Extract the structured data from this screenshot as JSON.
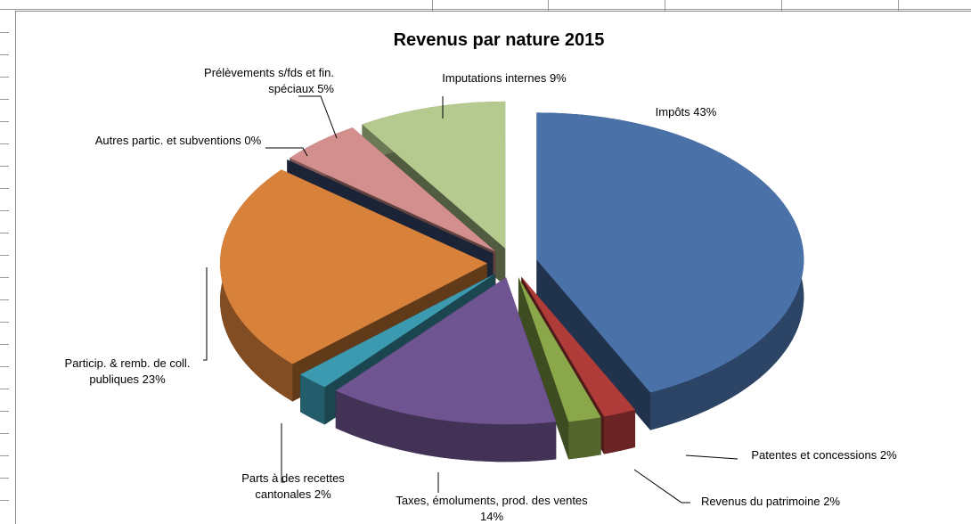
{
  "chart_data": {
    "type": "pie",
    "title": "Revenus par nature 2015",
    "categories": [
      "Impôts",
      "Patentes et concessions",
      "Revenus du patrimoine",
      "Taxes, émoluments, prod. des ventes",
      "Parts à des recettes cantonales",
      "Particip. & remb. de coll. publiques",
      "Autres partic. et subventions",
      "Prélèvements s/fds et fin. spéciaux",
      "Imputations internes"
    ],
    "values": [
      43,
      2,
      2,
      14,
      2,
      23,
      0,
      5,
      9
    ],
    "value_labels": [
      "43%",
      "2%",
      "2%",
      "14%",
      "2%",
      "23%",
      "0%",
      "5%",
      "9%"
    ],
    "colors": [
      "#4a72a8",
      "#b03c3a",
      "#8aa84a",
      "#6e5490",
      "#3b9ab0",
      "#d8813a",
      "#3a4f78",
      "#d38e8e",
      "#b5ca8e"
    ]
  }
}
